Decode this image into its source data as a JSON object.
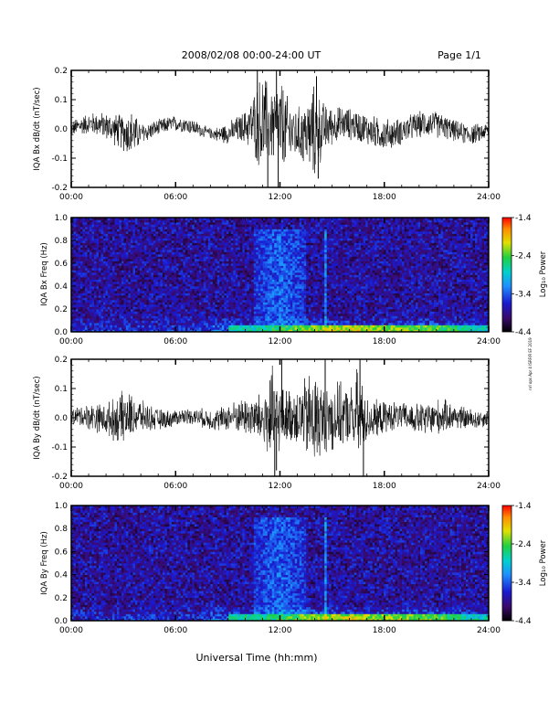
{
  "header": {
    "title": "2008/02/08  00:00-24:00 UT",
    "page": "Page 1/1"
  },
  "footer": {
    "xlabel": "Universal Time (hh:mm)",
    "credit": "nrl ops Apr 4 ISRF/R EF 2019"
  },
  "chart_data": [
    {
      "type": "line",
      "id": "bx-dbdt",
      "ylabel": "IQA Bx dB/dt (nT/sec)",
      "xticks": [
        "00:00",
        "06:00",
        "12:00",
        "18:00",
        "24:00"
      ],
      "yticks": [
        "-0.2",
        "-0.1",
        "0.0",
        "0.1",
        "0.2"
      ],
      "xlim": [
        0,
        24
      ],
      "ylim": [
        -0.2,
        0.2
      ],
      "series": [
        {
          "x": [
            0,
            1,
            2,
            3,
            3.5,
            4,
            5,
            6,
            7,
            8,
            9,
            10,
            10.5,
            11,
            11.5,
            12,
            12.5,
            13,
            13.5,
            14,
            14.5,
            15,
            16,
            17,
            18,
            19,
            20,
            21,
            22,
            23,
            24
          ],
          "envelope": [
            0.03,
            0.04,
            0.05,
            0.07,
            0.09,
            0.04,
            0.03,
            0.03,
            0.03,
            0.02,
            0.04,
            0.06,
            0.12,
            0.2,
            0.14,
            0.2,
            0.12,
            0.1,
            0.12,
            0.18,
            0.1,
            0.07,
            0.06,
            0.06,
            0.06,
            0.05,
            0.05,
            0.05,
            0.04,
            0.04,
            0.03
          ],
          "spikes": [
            {
              "x": 10.7,
              "y": 0.2
            },
            {
              "x": 11.3,
              "y": -0.2
            },
            {
              "x": 11.8,
              "y": 0.2
            },
            {
              "x": 11.9,
              "y": -0.2
            },
            {
              "x": 14.1,
              "y": 0.18
            },
            {
              "x": 14.2,
              "y": -0.17
            }
          ]
        }
      ]
    },
    {
      "type": "heatmap",
      "id": "bx-spectrogram",
      "ylabel": "IQA Bx Freq (Hz)",
      "xticks": [
        "00:00",
        "06:00",
        "12:00",
        "18:00",
        "24:00"
      ],
      "yticks": [
        "0.0",
        "0.2",
        "0.4",
        "0.6",
        "0.8",
        "1.0"
      ],
      "xlim": [
        0,
        24
      ],
      "ylim": [
        0,
        1
      ],
      "colorbar": {
        "label": "Log₁₀ Power",
        "ticks": [
          "-1.4",
          "-2.4",
          "-3.4",
          "-4.4"
        ],
        "range": [
          -4.4,
          -1.4
        ]
      },
      "features": [
        {
          "desc": "active burst",
          "x": [
            10.5,
            13.5
          ],
          "y": [
            0,
            0.9
          ],
          "level": -3.4
        },
        {
          "desc": "low-frequency enhancement",
          "x": [
            9,
            24
          ],
          "y": [
            0,
            0.05
          ],
          "level": -2.4
        },
        {
          "desc": "narrow line",
          "x": [
            14.6,
            14.7
          ],
          "y": [
            0,
            0.9
          ],
          "level": -3.0
        }
      ]
    },
    {
      "type": "line",
      "id": "by-dbdt",
      "ylabel": "IQA By dB/dt (nT/sec)",
      "xticks": [
        "00:00",
        "06:00",
        "12:00",
        "18:00",
        "24:00"
      ],
      "yticks": [
        "-0.2",
        "-0.1",
        "0.0",
        "0.1",
        "0.2"
      ],
      "xlim": [
        0,
        24
      ],
      "ylim": [
        -0.2,
        0.2
      ],
      "series": [
        {
          "x": [
            0,
            1,
            2,
            3,
            4,
            5,
            6,
            7,
            8,
            9,
            10,
            11,
            11.5,
            12,
            12.5,
            13,
            14,
            14.5,
            15,
            16,
            16.5,
            17,
            18,
            19,
            20,
            21,
            22,
            23,
            24
          ],
          "envelope": [
            0.03,
            0.05,
            0.06,
            0.1,
            0.06,
            0.04,
            0.03,
            0.03,
            0.04,
            0.05,
            0.07,
            0.1,
            0.2,
            0.12,
            0.1,
            0.11,
            0.2,
            0.12,
            0.14,
            0.1,
            0.2,
            0.08,
            0.06,
            0.05,
            0.06,
            0.07,
            0.05,
            0.04,
            0.03
          ],
          "spikes": [
            {
              "x": 11.7,
              "y": -0.2
            },
            {
              "x": 12.1,
              "y": 0.2
            },
            {
              "x": 14.6,
              "y": 0.2
            },
            {
              "x": 16.6,
              "y": 0.2
            },
            {
              "x": 16.8,
              "y": -0.2
            },
            {
              "x": 11.8,
              "y": -0.18
            }
          ]
        }
      ]
    },
    {
      "type": "heatmap",
      "id": "by-spectrogram",
      "ylabel": "IQA By Freq (Hz)",
      "xticks": [
        "00:00",
        "06:00",
        "12:00",
        "18:00",
        "24:00"
      ],
      "yticks": [
        "0.0",
        "0.2",
        "0.4",
        "0.6",
        "0.8",
        "1.0"
      ],
      "xlim": [
        0,
        24
      ],
      "ylim": [
        0,
        1
      ],
      "colorbar": {
        "label": "Log₁₀ Power",
        "ticks": [
          "-1.4",
          "-2.4",
          "-3.4",
          "-4.4"
        ],
        "range": [
          -4.4,
          -1.4
        ]
      },
      "features": [
        {
          "desc": "active burst",
          "x": [
            10.5,
            13.5
          ],
          "y": [
            0,
            0.9
          ],
          "level": -3.4
        },
        {
          "desc": "low-frequency enhancement",
          "x": [
            9,
            24
          ],
          "y": [
            0,
            0.05
          ],
          "level": -2.4
        },
        {
          "desc": "narrow line",
          "x": [
            14.6,
            14.7
          ],
          "y": [
            0,
            0.9
          ],
          "level": -3.0
        }
      ]
    }
  ]
}
